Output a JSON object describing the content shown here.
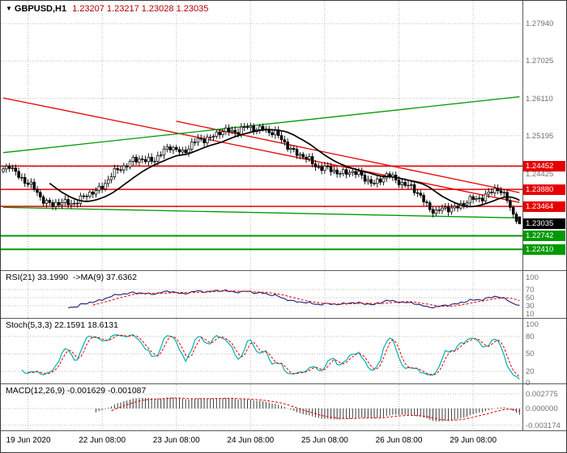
{
  "title": {
    "dropdown_icon": "▼",
    "symbol": "GBPUSD,H1",
    "ohlc": "1.23207 1.23217 1.23028 1.23035"
  },
  "colors": {
    "background": "#ffffff",
    "grid": "#bdbdbd",
    "axis_text": "#707070",
    "candle": "#000000",
    "candle_bull_fill": "#ffffff",
    "ma_line": "#000000",
    "level_red": "#e60000",
    "level_green": "#009a00",
    "badge_red": "#e60000",
    "badge_green": "#009a00",
    "badge_black": "#000000",
    "trend_red": "#e60000",
    "trend_green": "#009a00",
    "rsi_line": "#1c1c70",
    "rsi_ma_line": "#e60000",
    "stoch_k_line": "#00b0b0",
    "stoch_d_line": "#e60000",
    "macd_hist": "#3a3a3a",
    "macd_signal": "#e60000",
    "title_ohlc": "#b00000"
  },
  "chart_data": {
    "type": "candlestick",
    "symbol": "GBPUSD",
    "timeframe": "H1",
    "last_candle": {
      "open": 1.23207,
      "high": 1.23217,
      "low": 1.23028,
      "close": 1.23035
    },
    "price_axis": {
      "top_price": 1.285,
      "bottom_price": 1.219,
      "labels": [
        "1.27940",
        "1.27025",
        "1.26110",
        "1.25195",
        "1.24425"
      ]
    },
    "time_axis": {
      "labels": [
        "19 Jun 2020",
        "22 Jun 08:00",
        "23 Jun 08:00",
        "24 Jun 08:00",
        "25 Jun 08:00",
        "26 Jun 08:00",
        "29 Jun 08:00"
      ],
      "indices": [
        8,
        32,
        56,
        80,
        104,
        128,
        152
      ]
    },
    "levels": [
      {
        "price": 1.24452,
        "label": "1.24452",
        "color": "red"
      },
      {
        "price": 1.2388,
        "label": "1.23880",
        "color": "red"
      },
      {
        "price": 1.23464,
        "label": "1.23464",
        "color": "red"
      },
      {
        "price": 1.23035,
        "label": "1.23035",
        "color": "black",
        "role": "last-price"
      },
      {
        "price": 1.22742,
        "label": "1.22742",
        "color": "green"
      },
      {
        "price": 1.2241,
        "label": "1.22410",
        "color": "green"
      }
    ],
    "trendlines": [
      {
        "color": "red",
        "x1_index": 0,
        "price1": 1.2612,
        "x2_index": 167,
        "price2": 1.2356
      },
      {
        "color": "red",
        "x1_index": 56,
        "price1": 1.2555,
        "x2_index": 167,
        "price2": 1.238
      },
      {
        "color": "green",
        "x1_index": 0,
        "price1": 1.2478,
        "x2_index": 167,
        "price2": 1.2615
      },
      {
        "color": "green",
        "x1_index": 0,
        "price1": 1.2344,
        "x2_index": 167,
        "price2": 1.2318
      }
    ],
    "candles_n": 168,
    "price_anchors": [
      [
        0,
        1.2432
      ],
      [
        2,
        1.2446
      ],
      [
        5,
        1.2424
      ],
      [
        8,
        1.2401
      ],
      [
        12,
        1.2371
      ],
      [
        16,
        1.2349
      ],
      [
        20,
        1.2354
      ],
      [
        23,
        1.2359
      ],
      [
        26,
        1.2366
      ],
      [
        30,
        1.2386
      ],
      [
        34,
        1.2411
      ],
      [
        38,
        1.2441
      ],
      [
        42,
        1.2462
      ],
      [
        46,
        1.2455
      ],
      [
        50,
        1.2471
      ],
      [
        54,
        1.2489
      ],
      [
        58,
        1.2482
      ],
      [
        62,
        1.2501
      ],
      [
        66,
        1.2516
      ],
      [
        70,
        1.2526
      ],
      [
        74,
        1.2531
      ],
      [
        78,
        1.2539
      ],
      [
        82,
        1.2533
      ],
      [
        84,
        1.2543
      ],
      [
        88,
        1.2521
      ],
      [
        92,
        1.2496
      ],
      [
        96,
        1.2471
      ],
      [
        100,
        1.2452
      ],
      [
        104,
        1.2441
      ],
      [
        108,
        1.2426
      ],
      [
        112,
        1.2436
      ],
      [
        116,
        1.2416
      ],
      [
        120,
        1.2406
      ],
      [
        124,
        1.2419
      ],
      [
        128,
        1.2411
      ],
      [
        132,
        1.2391
      ],
      [
        136,
        1.2361
      ],
      [
        140,
        1.2331
      ],
      [
        144,
        1.2341
      ],
      [
        148,
        1.2351
      ],
      [
        152,
        1.2361
      ],
      [
        156,
        1.2376
      ],
      [
        160,
        1.2386
      ],
      [
        163,
        1.2366
      ],
      [
        165,
        1.2331
      ],
      [
        167,
        1.2304
      ]
    ],
    "wiggle": [
      0.00055,
      0.00045,
      0.00035
    ],
    "ma_period": 16,
    "indicators": {
      "rsi": {
        "label_text": "RSI(21) 33.1990  ->MA(9) 37.6362",
        "period": 21,
        "ma_period": 9,
        "value": 33.199,
        "ma_value": 37.6362,
        "scale_labels": [
          "100",
          "70",
          "50",
          "30",
          "10"
        ],
        "scale_values": [
          100,
          70,
          50,
          30,
          10
        ],
        "guides": [
          70,
          50,
          30
        ]
      },
      "stoch": {
        "label_text": "Stoch(5,3,3) 22.1591 18.6131",
        "k_period": 5,
        "d_period": 3,
        "slowing": 3,
        "value": 22.1591,
        "signal_value": 18.6131,
        "scale_labels": [
          "100",
          "80",
          "50",
          "20",
          "0"
        ],
        "scale_values": [
          100,
          80,
          50,
          20,
          0
        ],
        "guides": [
          80,
          50,
          20
        ]
      },
      "macd": {
        "label_text": "MACD(12,26,9) -0.001629 -0.001087",
        "fast": 12,
        "slow": 26,
        "signal": 9,
        "value": -0.001629,
        "signal_value": -0.001087,
        "scale_labels": [
          "0.002775",
          "0.000000",
          "-0.003174"
        ],
        "scale_values": [
          0.002775,
          0,
          -0.003174
        ]
      }
    }
  }
}
